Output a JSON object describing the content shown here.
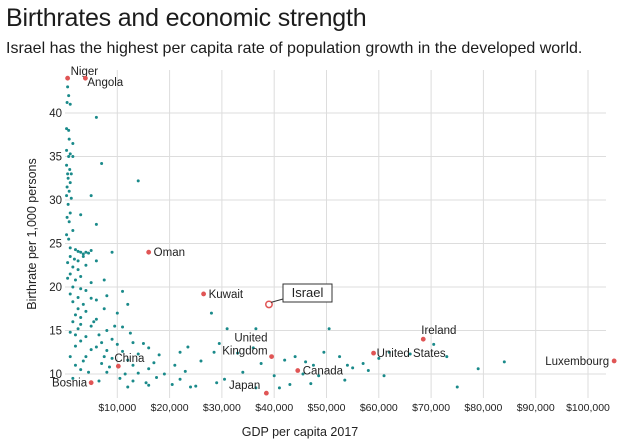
{
  "title": "Birthrates and economic strength",
  "subtitle": "Israel has the highest per capita rate of population growth in the developed world.",
  "chart_data": {
    "type": "scatter",
    "xlabel": "GDP per capita 2017",
    "ylabel": "Birthrate per 1,000 persons",
    "xlim": [
      0,
      105000
    ],
    "ylim": [
      7.5,
      45
    ],
    "x_ticks": [
      10000,
      20000,
      30000,
      40000,
      50000,
      60000,
      70000,
      80000,
      90000,
      100000
    ],
    "x_tick_labels": [
      "$10,000",
      "$20,000",
      "$30,000",
      "$40,000",
      "$50,000",
      "$60,000",
      "$70,000",
      "$80,000",
      "$90,000",
      "$100,000"
    ],
    "y_ticks": [
      10,
      15,
      20,
      25,
      30,
      35,
      40
    ],
    "y_tick_labels": [
      "10",
      "15",
      "20",
      "25",
      "30",
      "35",
      "40"
    ],
    "grid": true,
    "colors": {
      "point": "#1a8a8a",
      "highlight": "#e05555",
      "grid": "#dddddd",
      "callout_border": "#333333"
    },
    "highlighted": [
      {
        "label": "Niger",
        "x": 500,
        "y": 44.0
      },
      {
        "label": "Angola",
        "x": 3900,
        "y": 44.0
      },
      {
        "label": "Oman",
        "x": 16000,
        "y": 24.0
      },
      {
        "label": "Kuwait",
        "x": 26500,
        "y": 19.2
      },
      {
        "label": "Israel",
        "x": 39000,
        "y": 18.0,
        "callout": true
      },
      {
        "label": "Ireland",
        "x": 68500,
        "y": 14.0
      },
      {
        "label": "United\nKingdom",
        "x": 39500,
        "y": 12.0
      },
      {
        "label": "United States",
        "x": 59000,
        "y": 12.4
      },
      {
        "label": "Luxembourg",
        "x": 105000,
        "y": 11.5
      },
      {
        "label": "China",
        "x": 10200,
        "y": 10.9
      },
      {
        "label": "Canada",
        "x": 44500,
        "y": 10.4
      },
      {
        "label": "Japan",
        "x": 38500,
        "y": 7.8
      },
      {
        "label": "Bosnia",
        "x": 5000,
        "y": 9.0
      }
    ],
    "points": [
      [
        500,
        43.0
      ],
      [
        700,
        42.0
      ],
      [
        400,
        41.2
      ],
      [
        1000,
        41.0
      ],
      [
        6000,
        39.5
      ],
      [
        300,
        38.2
      ],
      [
        700,
        38.0
      ],
      [
        800,
        37.0
      ],
      [
        1500,
        36.5
      ],
      [
        300,
        35.7
      ],
      [
        700,
        35.0
      ],
      [
        1000,
        35.3
      ],
      [
        1500,
        35.0
      ],
      [
        7000,
        34.2
      ],
      [
        300,
        34.0
      ],
      [
        900,
        33.5
      ],
      [
        500,
        33.0
      ],
      [
        1200,
        33.0
      ],
      [
        600,
        32.5
      ],
      [
        1000,
        32.0
      ],
      [
        14000,
        32.2
      ],
      [
        400,
        31.5
      ],
      [
        800,
        31.0
      ],
      [
        300,
        30.5
      ],
      [
        5000,
        30.5
      ],
      [
        1200,
        30.2
      ],
      [
        600,
        29.5
      ],
      [
        1000,
        28.5
      ],
      [
        3000,
        28.3
      ],
      [
        400,
        28.0
      ],
      [
        800,
        27.5
      ],
      [
        6000,
        27.2
      ],
      [
        1500,
        26.5
      ],
      [
        300,
        26.0
      ],
      [
        700,
        25.5
      ],
      [
        1000,
        24.5
      ],
      [
        2000,
        24.3
      ],
      [
        2500,
        24.1
      ],
      [
        3000,
        24.0
      ],
      [
        3500,
        23.8
      ],
      [
        4000,
        24.0
      ],
      [
        4500,
        23.9
      ],
      [
        5000,
        24.2
      ],
      [
        1000,
        23.5
      ],
      [
        1800,
        23.2
      ],
      [
        2500,
        23.0
      ],
      [
        3500,
        23.5
      ],
      [
        6000,
        23.0
      ],
      [
        9000,
        24.0
      ],
      [
        500,
        22.8
      ],
      [
        1500,
        22.3
      ],
      [
        2500,
        22.0
      ],
      [
        4000,
        22.5
      ],
      [
        1000,
        21.5
      ],
      [
        3000,
        21.2
      ],
      [
        500,
        21.0
      ],
      [
        2000,
        20.8
      ],
      [
        5000,
        20.5
      ],
      [
        7500,
        20.8
      ],
      [
        1500,
        20.0
      ],
      [
        3000,
        19.8
      ],
      [
        4000,
        19.6
      ],
      [
        1000,
        19.2
      ],
      [
        8000,
        19.0
      ],
      [
        11000,
        19.5
      ],
      [
        2500,
        18.8
      ],
      [
        5000,
        18.7
      ],
      [
        6000,
        18.5
      ],
      [
        1500,
        18.3
      ],
      [
        3500,
        18.0
      ],
      [
        12000,
        18.0
      ],
      [
        2500,
        17.5
      ],
      [
        7500,
        17.5
      ],
      [
        4000,
        17.2
      ],
      [
        10000,
        17.0
      ],
      [
        2000,
        16.8
      ],
      [
        3000,
        16.5
      ],
      [
        6000,
        16.3
      ],
      [
        1500,
        16.0
      ],
      [
        5500,
        16.0
      ],
      [
        3000,
        15.7
      ],
      [
        5000,
        15.5
      ],
      [
        9500,
        15.5
      ],
      [
        11000,
        15.4
      ],
      [
        2500,
        15.2
      ],
      [
        8000,
        15.0
      ],
      [
        1000,
        14.8
      ],
      [
        6500,
        14.5
      ],
      [
        12500,
        14.7
      ],
      [
        4000,
        14.3
      ],
      [
        9000,
        14.0
      ],
      [
        7000,
        13.6
      ],
      [
        13000,
        13.6
      ],
      [
        10000,
        13.4
      ],
      [
        2000,
        13.2
      ],
      [
        15000,
        13.5
      ],
      [
        16000,
        13.0
      ],
      [
        5000,
        12.8
      ],
      [
        8000,
        12.7
      ],
      [
        11000,
        12.6
      ],
      [
        14000,
        12.3
      ],
      [
        4000,
        12.0
      ],
      [
        9000,
        11.8
      ],
      [
        12000,
        11.6
      ],
      [
        3500,
        11.5
      ],
      [
        22000,
        12.5
      ],
      [
        7000,
        11.2
      ],
      [
        13000,
        11.0
      ],
      [
        17000,
        11.3
      ],
      [
        16000,
        10.6
      ],
      [
        21000,
        11.0
      ],
      [
        8000,
        10.2
      ],
      [
        11500,
        10.0
      ],
      [
        14000,
        10.1
      ],
      [
        19000,
        10.0
      ],
      [
        23000,
        10.3
      ],
      [
        10500,
        9.5
      ],
      [
        13000,
        9.2
      ],
      [
        17500,
        9.6
      ],
      [
        22000,
        9.4
      ],
      [
        6500,
        9.2
      ],
      [
        15500,
        9.0
      ],
      [
        20500,
        8.8
      ],
      [
        24000,
        8.5
      ],
      [
        29000,
        9.0
      ],
      [
        12000,
        8.5
      ],
      [
        16000,
        8.7
      ],
      [
        25000,
        8.6
      ],
      [
        30500,
        9.4
      ],
      [
        28500,
        12.5
      ],
      [
        31000,
        15.2
      ],
      [
        36500,
        15.2
      ],
      [
        28000,
        17.0
      ],
      [
        29500,
        13.5
      ],
      [
        33000,
        12.4
      ],
      [
        36000,
        13.0
      ],
      [
        37500,
        11.2
      ],
      [
        34000,
        10.2
      ],
      [
        42000,
        11.6
      ],
      [
        44000,
        12.0
      ],
      [
        46000,
        11.4
      ],
      [
        47500,
        11.0
      ],
      [
        45500,
        10.0
      ],
      [
        48500,
        9.8
      ],
      [
        49500,
        12.5
      ],
      [
        50500,
        15.2
      ],
      [
        52500,
        12.0
      ],
      [
        54000,
        11.0
      ],
      [
        55000,
        10.7
      ],
      [
        57000,
        11.2
      ],
      [
        60000,
        11.8
      ],
      [
        62000,
        12.5
      ],
      [
        66000,
        12.3
      ],
      [
        70500,
        13.4
      ],
      [
        73000,
        12.0
      ],
      [
        75000,
        8.5
      ],
      [
        79000,
        10.6
      ],
      [
        84000,
        11.4
      ],
      [
        61000,
        9.8
      ],
      [
        41000,
        8.4
      ],
      [
        43000,
        8.8
      ],
      [
        36500,
        8.4
      ],
      [
        53500,
        9.3
      ],
      [
        58000,
        10.4
      ],
      [
        40000,
        9.8
      ],
      [
        47000,
        8.9
      ],
      [
        26000,
        11.5
      ],
      [
        23500,
        13.1
      ],
      [
        18000,
        12.2
      ],
      [
        1000,
        12.0
      ],
      [
        2000,
        11.0
      ],
      [
        3000,
        10.5
      ],
      [
        1500,
        9.5
      ],
      [
        4500,
        10.2
      ],
      [
        2000,
        14.5
      ],
      [
        3000,
        13.8
      ],
      [
        6000,
        13.1
      ],
      [
        7500,
        12.0
      ],
      [
        8500,
        10.8
      ]
    ]
  }
}
